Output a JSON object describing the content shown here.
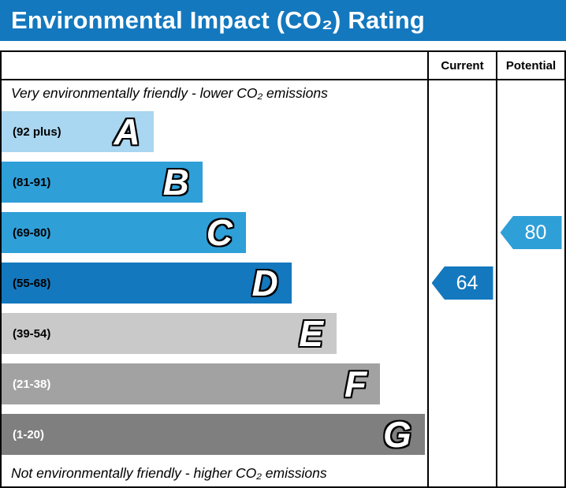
{
  "title": "Environmental Impact (CO₂) Rating",
  "header": {
    "current": "Current",
    "potential": "Potential"
  },
  "top_note": "Very environmentally friendly - lower CO₂ emissions",
  "bottom_note": "Not environmentally friendly - higher CO₂ emissions",
  "colors": {
    "title_bar": "#1478be",
    "border": "#000000"
  },
  "chart_data": {
    "type": "bar",
    "title": "Environmental Impact (CO₂) Rating",
    "bands": [
      {
        "letter": "A",
        "range": "(92 plus)",
        "width_pct": 35.7,
        "color": "#a9d6f0",
        "label_color": "#000000"
      },
      {
        "letter": "B",
        "range": "(81-91)",
        "width_pct": 47.2,
        "color": "#2f9fd8",
        "label_color": "#000000"
      },
      {
        "letter": "C",
        "range": "(69-80)",
        "width_pct": 57.4,
        "color": "#2f9fd8",
        "label_color": "#000000"
      },
      {
        "letter": "D",
        "range": "(55-68)",
        "width_pct": 68.1,
        "color": "#1478be",
        "label_color": "#000000"
      },
      {
        "letter": "E",
        "range": "(39-54)",
        "width_pct": 78.7,
        "color": "#c9c9c9",
        "label_color": "#000000"
      },
      {
        "letter": "F",
        "range": "(21-38)",
        "width_pct": 88.9,
        "color": "#a2a2a2",
        "label_color": "#ffffff"
      },
      {
        "letter": "G",
        "range": "(1-20)",
        "width_pct": 99.4,
        "color": "#7f7f7f",
        "label_color": "#ffffff"
      }
    ],
    "current": {
      "value": 64,
      "band": "D",
      "band_index": 3,
      "color": "#1478be"
    },
    "potential": {
      "value": 80,
      "band": "C",
      "band_index": 2,
      "color": "#2f9fd8"
    }
  }
}
